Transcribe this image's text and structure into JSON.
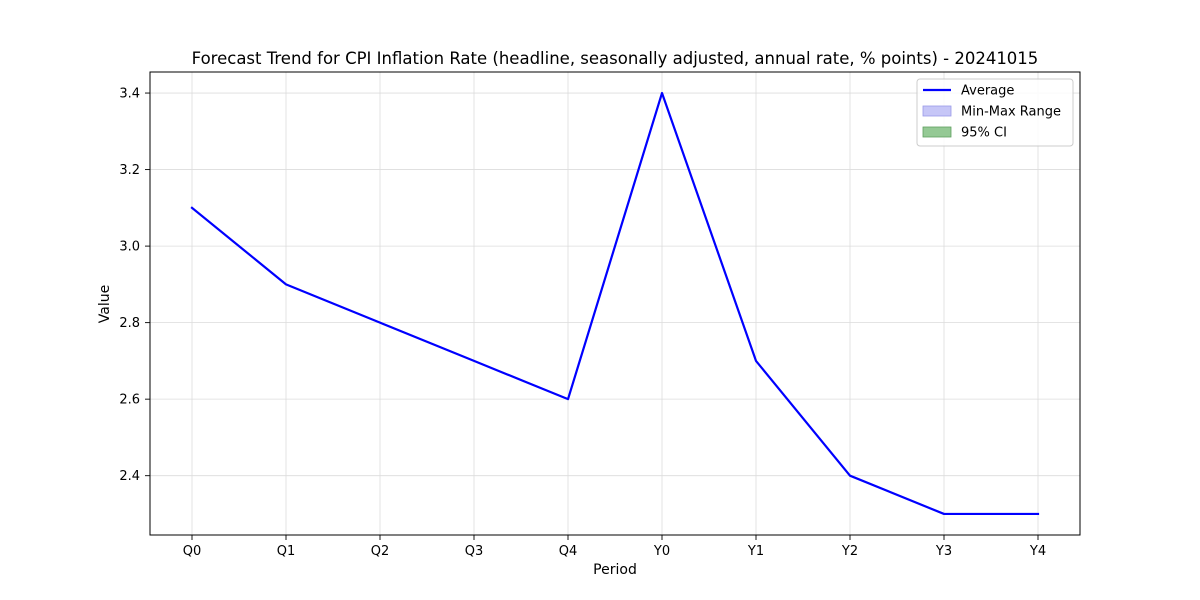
{
  "chart_data": {
    "type": "line",
    "title": "Forecast Trend for CPI Inflation Rate (headline, seasonally adjusted, annual rate, % points) - 20241015",
    "xlabel": "Period",
    "ylabel": "Value",
    "categories": [
      "Q0",
      "Q1",
      "Q2",
      "Q3",
      "Q4",
      "Y0",
      "Y1",
      "Y2",
      "Y3",
      "Y4"
    ],
    "series": [
      {
        "name": "Average",
        "values": [
          3.1,
          2.9,
          2.8,
          2.7,
          2.6,
          3.4,
          2.7,
          2.4,
          2.3,
          2.3
        ],
        "color": "#0000ff"
      }
    ],
    "yticks": [
      "2.4",
      "2.6",
      "2.8",
      "3.0",
      "3.2",
      "3.4"
    ],
    "ylim": [
      2.245,
      3.455
    ],
    "grid": true,
    "legend": {
      "placement": "top-right",
      "entries": [
        {
          "label": "Average",
          "kind": "line",
          "color": "#0000ff"
        },
        {
          "label": "Min-Max Range",
          "kind": "patch",
          "color": "#c6c6f7",
          "edge": "#9a9ae8"
        },
        {
          "label": "95% CI",
          "kind": "patch",
          "color": "#94c994",
          "edge": "#5fa05f"
        }
      ]
    }
  }
}
